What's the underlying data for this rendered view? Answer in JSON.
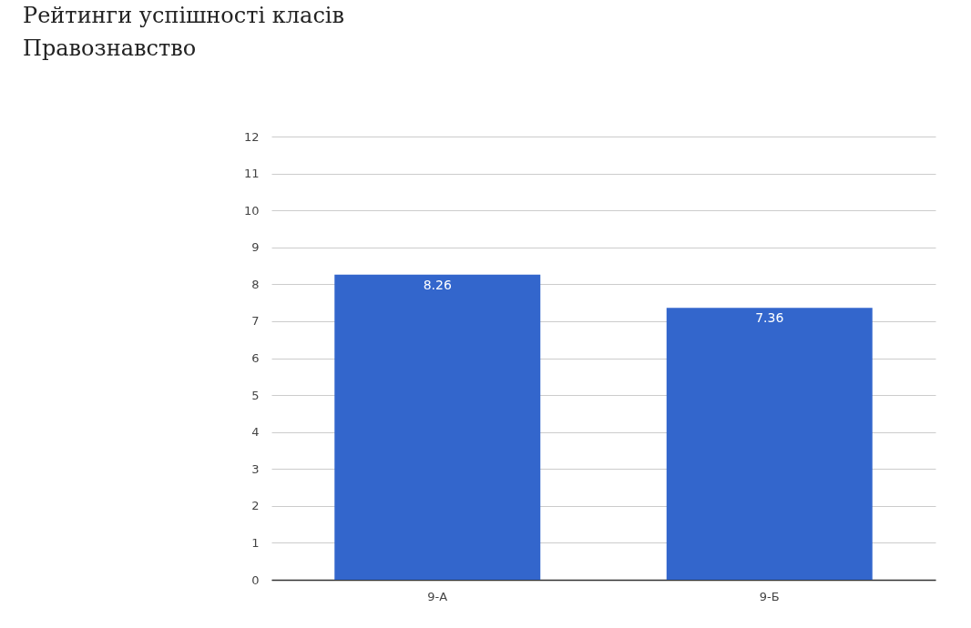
{
  "chart_data": {
    "type": "bar",
    "title": "Рейтинги успішності класів",
    "subtitle": "Правознавство",
    "categories": [
      "9-А",
      "9-Б"
    ],
    "values": [
      8.26,
      7.36
    ],
    "color": "#3366cc",
    "data_labels": true,
    "ylim": [
      0,
      12
    ],
    "yticks": [
      0,
      1,
      2,
      3,
      4,
      5,
      6,
      7,
      8,
      9,
      10,
      11,
      12
    ],
    "grid": "y"
  }
}
